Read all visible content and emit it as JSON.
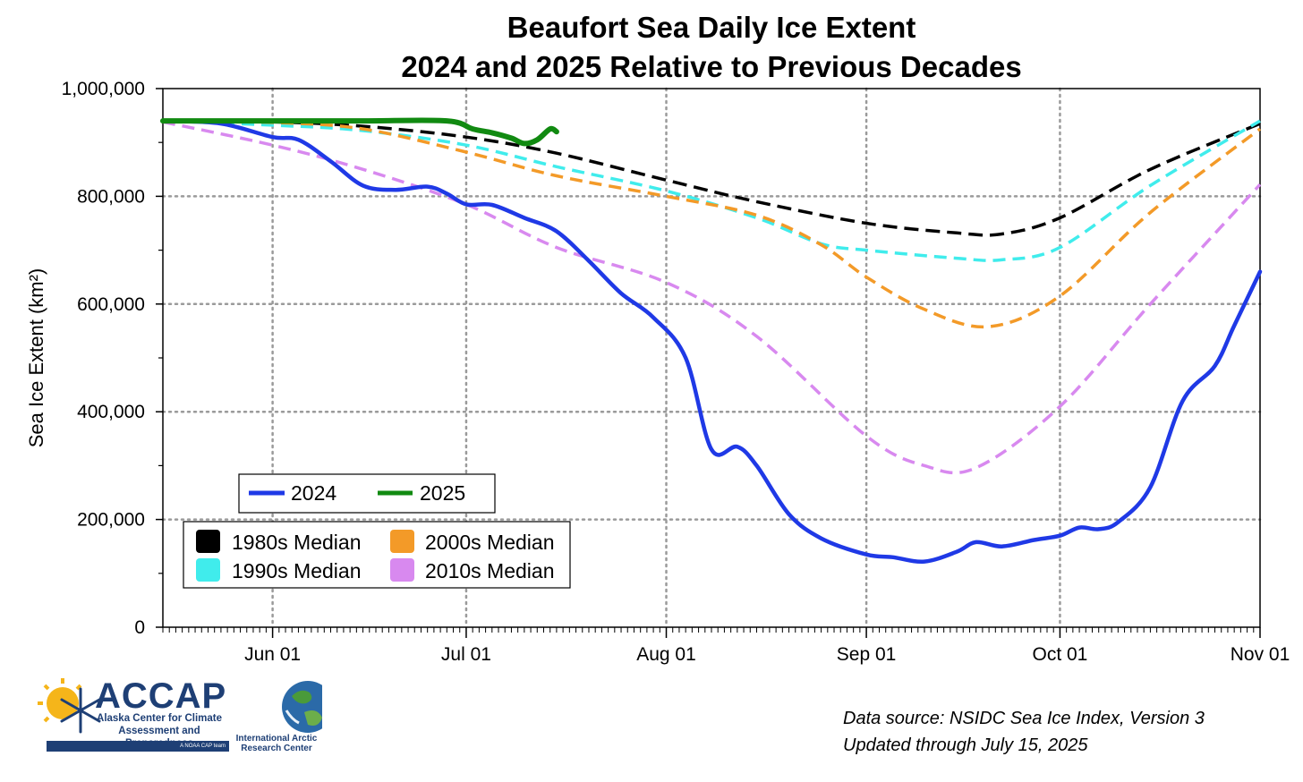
{
  "chart_data": {
    "type": "line",
    "title": "Beaufort Sea Daily Ice Extent",
    "subtitle": "2024 and 2025 Relative to Previous Decades",
    "xlabel": "",
    "ylabel": "Sea Ice Extent (km²)",
    "ylim": [
      0,
      1000000
    ],
    "xlim": [
      "2024-05-15",
      "2024-11-01"
    ],
    "x_tick_labels": [
      "Jun 01",
      "Jul 01",
      "Aug 01",
      "Sep 01",
      "Oct 01",
      "Nov 01"
    ],
    "y_tick_labels": [
      "0",
      "200,000",
      "400,000",
      "600,000",
      "800,000",
      "1,000,000"
    ],
    "y_ticks": [
      0,
      200000,
      400000,
      600000,
      800000,
      1000000
    ],
    "grid": true,
    "series": [
      {
        "name": "1980s Median",
        "style": "dashed",
        "color": "#000000",
        "points": [
          [
            "2024-05-15",
            940000
          ],
          [
            "2024-06-01",
            938000
          ],
          [
            "2024-06-15",
            930000
          ],
          [
            "2024-07-01",
            910000
          ],
          [
            "2024-07-15",
            880000
          ],
          [
            "2024-08-01",
            830000
          ],
          [
            "2024-08-15",
            790000
          ],
          [
            "2024-09-01",
            750000
          ],
          [
            "2024-09-15",
            732000
          ],
          [
            "2024-09-22",
            730000
          ],
          [
            "2024-10-01",
            760000
          ],
          [
            "2024-10-15",
            850000
          ],
          [
            "2024-11-01",
            935000
          ]
        ]
      },
      {
        "name": "1990s Median",
        "style": "dashed",
        "color": "#40ecec",
        "points": [
          [
            "2024-05-15",
            940000
          ],
          [
            "2024-06-01",
            932000
          ],
          [
            "2024-06-15",
            922000
          ],
          [
            "2024-07-01",
            895000
          ],
          [
            "2024-07-15",
            855000
          ],
          [
            "2024-08-01",
            810000
          ],
          [
            "2024-08-15",
            760000
          ],
          [
            "2024-08-25",
            712000
          ],
          [
            "2024-09-01",
            700000
          ],
          [
            "2024-09-15",
            685000
          ],
          [
            "2024-09-22",
            682000
          ],
          [
            "2024-10-01",
            705000
          ],
          [
            "2024-10-15",
            820000
          ],
          [
            "2024-11-01",
            940000
          ]
        ]
      },
      {
        "name": "2000s Median",
        "style": "dashed",
        "color": "#f39a28",
        "points": [
          [
            "2024-05-15",
            940000
          ],
          [
            "2024-06-01",
            937000
          ],
          [
            "2024-06-15",
            925000
          ],
          [
            "2024-07-01",
            882000
          ],
          [
            "2024-07-15",
            838000
          ],
          [
            "2024-08-01",
            800000
          ],
          [
            "2024-08-15",
            765000
          ],
          [
            "2024-08-25",
            710000
          ],
          [
            "2024-09-01",
            650000
          ],
          [
            "2024-09-10",
            590000
          ],
          [
            "2024-09-20",
            558000
          ],
          [
            "2024-10-01",
            615000
          ],
          [
            "2024-10-15",
            770000
          ],
          [
            "2024-11-01",
            925000
          ]
        ]
      },
      {
        "name": "2010s Median",
        "style": "dashed",
        "color": "#d889ef",
        "points": [
          [
            "2024-05-15",
            938000
          ],
          [
            "2024-06-01",
            895000
          ],
          [
            "2024-06-15",
            850000
          ],
          [
            "2024-07-01",
            785000
          ],
          [
            "2024-07-15",
            705000
          ],
          [
            "2024-08-01",
            640000
          ],
          [
            "2024-08-15",
            540000
          ],
          [
            "2024-09-01",
            355000
          ],
          [
            "2024-09-10",
            300000
          ],
          [
            "2024-09-18",
            296000
          ],
          [
            "2024-10-01",
            410000
          ],
          [
            "2024-10-15",
            600000
          ],
          [
            "2024-11-01",
            822000
          ]
        ]
      },
      {
        "name": "2024",
        "style": "solid",
        "color": "#1f39e6",
        "points": [
          [
            "2024-05-15",
            940000
          ],
          [
            "2024-05-24",
            935000
          ],
          [
            "2024-06-01",
            910000
          ],
          [
            "2024-06-05",
            905000
          ],
          [
            "2024-06-10",
            865000
          ],
          [
            "2024-06-15",
            820000
          ],
          [
            "2024-06-20",
            812000
          ],
          [
            "2024-06-25",
            818000
          ],
          [
            "2024-06-28",
            805000
          ],
          [
            "2024-07-01",
            785000
          ],
          [
            "2024-07-05",
            784000
          ],
          [
            "2024-07-10",
            760000
          ],
          [
            "2024-07-15",
            735000
          ],
          [
            "2024-07-20",
            680000
          ],
          [
            "2024-07-25",
            620000
          ],
          [
            "2024-07-30",
            575000
          ],
          [
            "2024-08-04",
            500000
          ],
          [
            "2024-08-08",
            330000
          ],
          [
            "2024-08-12",
            335000
          ],
          [
            "2024-08-15",
            300000
          ],
          [
            "2024-08-20",
            210000
          ],
          [
            "2024-08-25",
            165000
          ],
          [
            "2024-09-01",
            135000
          ],
          [
            "2024-09-05",
            130000
          ],
          [
            "2024-09-10",
            122000
          ],
          [
            "2024-09-15",
            140000
          ],
          [
            "2024-09-18",
            158000
          ],
          [
            "2024-09-22",
            150000
          ],
          [
            "2024-09-27",
            162000
          ],
          [
            "2024-10-01",
            170000
          ],
          [
            "2024-10-04",
            185000
          ],
          [
            "2024-10-07",
            182000
          ],
          [
            "2024-10-10",
            195000
          ],
          [
            "2024-10-15",
            260000
          ],
          [
            "2024-10-20",
            420000
          ],
          [
            "2024-10-25",
            485000
          ],
          [
            "2024-10-28",
            560000
          ],
          [
            "2024-11-01",
            660000
          ]
        ]
      },
      {
        "name": "2025",
        "style": "solid",
        "color": "#118a11",
        "points": [
          [
            "2024-05-15",
            940000
          ],
          [
            "2024-06-01",
            940000
          ],
          [
            "2024-06-15",
            940000
          ],
          [
            "2024-06-28",
            940000
          ],
          [
            "2024-07-02",
            925000
          ],
          [
            "2024-07-05",
            918000
          ],
          [
            "2024-07-08",
            908000
          ],
          [
            "2024-07-10",
            898000
          ],
          [
            "2024-07-12",
            905000
          ],
          [
            "2024-07-14",
            925000
          ],
          [
            "2024-07-15",
            920000
          ]
        ]
      }
    ]
  },
  "legend_main": [
    "2024",
    "2025"
  ],
  "legend_decades": [
    "1980s Median",
    "2000s Median",
    "1990s Median",
    "2010s Median"
  ],
  "footer": {
    "source_line1": "Data source: NSIDC Sea Ice Index, Version 3",
    "source_line2": "Updated through July 15, 2025",
    "accap_name": "ACCAP",
    "accap_line1": "Alaska Center for Climate",
    "accap_line2": "Assessment and Preparedness",
    "accap_tag": "A NOAA CAP team",
    "iarc_line1": "International Arctic",
    "iarc_line2": "Research Center"
  }
}
